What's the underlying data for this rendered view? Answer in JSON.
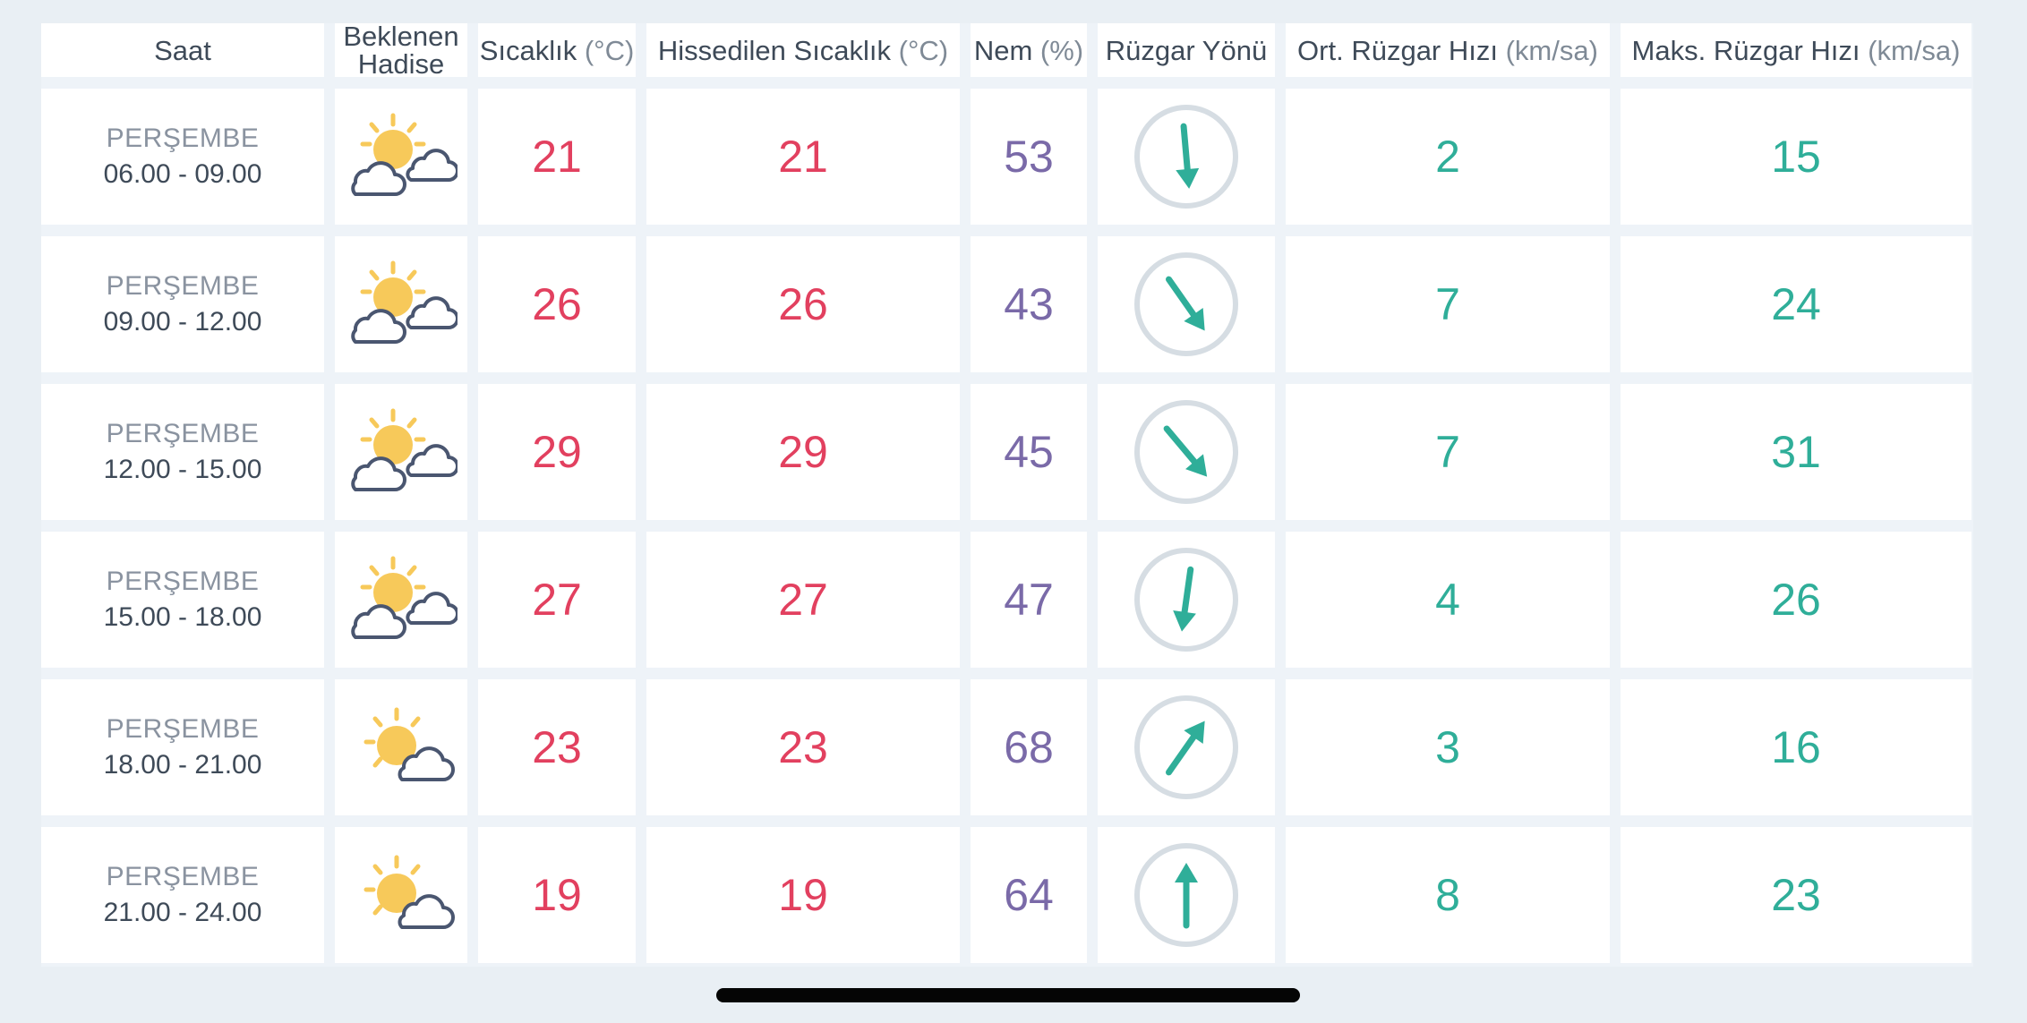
{
  "headers": {
    "time": "Saat",
    "event_line1": "Beklenen",
    "event_line2": "Hadise",
    "temp_label": "Sıcaklık",
    "temp_unit": "(°C)",
    "feels_label": "Hissedilen Sıcaklık",
    "feels_unit": "(°C)",
    "humidity_label": "Nem",
    "humidity_unit": "(%)",
    "wind_dir": "Rüzgar Yönü",
    "avg_wind_label": "Ort. Rüzgar Hızı",
    "avg_wind_unit": "(km/sa)",
    "max_wind_label": "Maks. Rüzgar Hızı",
    "max_wind_unit": "(km/sa)"
  },
  "colors": {
    "temperature": "#e2405f",
    "humidity": "#7a6aa8",
    "wind": "#2fae99",
    "sun": "#f7c95a",
    "cloud_outline": "#4a5670",
    "dial": "#d6dde3"
  },
  "rows": [
    {
      "day": "PERŞEMBE",
      "range": "06.00 - 09.00",
      "icon": "partly-cloudy-icon",
      "temp": "21",
      "feels": "21",
      "humidity": "53",
      "wind_dir_deg": 175,
      "avg_wind": "2",
      "max_wind": "15"
    },
    {
      "day": "PERŞEMBE",
      "range": "09.00 - 12.00",
      "icon": "partly-cloudy-icon",
      "temp": "26",
      "feels": "26",
      "humidity": "43",
      "wind_dir_deg": 145,
      "avg_wind": "7",
      "max_wind": "24"
    },
    {
      "day": "PERŞEMBE",
      "range": "12.00 - 15.00",
      "icon": "partly-cloudy-icon",
      "temp": "29",
      "feels": "29",
      "humidity": "45",
      "wind_dir_deg": 140,
      "avg_wind": "7",
      "max_wind": "31"
    },
    {
      "day": "PERŞEMBE",
      "range": "15.00 - 18.00",
      "icon": "partly-cloudy-icon",
      "temp": "27",
      "feels": "27",
      "humidity": "47",
      "wind_dir_deg": 188,
      "avg_wind": "4",
      "max_wind": "26"
    },
    {
      "day": "PERŞEMBE",
      "range": "18.00 - 21.00",
      "icon": "sun-behind-cloud-icon",
      "temp": "23",
      "feels": "23",
      "humidity": "68",
      "wind_dir_deg": 35,
      "avg_wind": "3",
      "max_wind": "16"
    },
    {
      "day": "PERŞEMBE",
      "range": "21.00 - 24.00",
      "icon": "sun-behind-cloud-icon",
      "temp": "19",
      "feels": "19",
      "humidity": "64",
      "wind_dir_deg": 0,
      "avg_wind": "8",
      "max_wind": "23"
    }
  ]
}
